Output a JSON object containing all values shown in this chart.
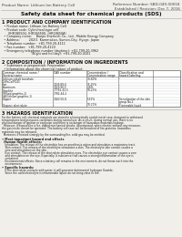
{
  "bg_color": "#f0efea",
  "header_left": "Product Name: Lithium Ion Battery Cell",
  "header_right_line1": "Reference Number: SBD-049-00018",
  "header_right_line2": "Established / Revision: Dec 7, 2016",
  "title": "Safety data sheet for chemical products (SDS)",
  "section1_title": "1 PRODUCT AND COMPANY IDENTIFICATION",
  "section1_lines": [
    "  • Product name: Lithium Ion Battery Cell",
    "  • Product code: Cylindrical-type cell",
    "      (IHR18650U, IHR18650U, IHR18650A)",
    "  • Company name:    Banpu Enertech Co., Ltd., Mobile Energy Company",
    "  • Address:         202/1  Kammakan, Sumon-City, Hyogo, Japan",
    "  • Telephone number:  +81-799-20-4111",
    "  • Fax number:  +81-799-20-4120",
    "  • Emergency telephone number (daytime): +81-799-20-3962",
    "                             (Night and holiday): +81-799-20-4101"
  ],
  "section2_title": "2 COMPOSITION / INFORMATION ON INGREDIENTS",
  "section2_pre": "  • Substance or preparation: Preparation",
  "section2_sub": "  • Information about the chemical nature of product:",
  "table_col_headers1": [
    "Common chemical name /",
    "CAS number",
    "Concentration /",
    "Classification and"
  ],
  "table_col_headers2": [
    "Several name",
    "",
    "Concentration range",
    "hazard labeling"
  ],
  "table_rows": [
    [
      "Lithium cobalt tantalate",
      "-",
      "30-60%",
      "-"
    ],
    [
      "(LiMnCo(PO4))",
      "",
      "",
      ""
    ],
    [
      "Iron",
      "7439-89-6",
      "15-25%",
      "-"
    ],
    [
      "Aluminum",
      "7429-90-5",
      "2-6%",
      "-"
    ],
    [
      "Graphite",
      "77782-42-5",
      "10-25%",
      "-"
    ],
    [
      "(Mixed graphite-1)",
      "7782-44-2",
      "",
      ""
    ],
    [
      "(All lithium graphite-1)",
      "",
      "",
      ""
    ],
    [
      "Copper",
      "7440-50-8",
      "5-15%",
      "Sensitization of the skin"
    ],
    [
      "",
      "",
      "",
      "group No.2"
    ],
    [
      "Organic electrolyte",
      "-",
      "10-20%",
      "Flammable liquid"
    ]
  ],
  "section3_title": "3 HAZARDS IDENTIFICATION",
  "section3_lines": [
    "For the battery cell, chemical materials are stored in a hermetically sealed metal case, designed to withstand",
    "temperatures and pressures-conditions during normal use. As a result, during normal use, there is no",
    "physical danger of ignition or explosion and there is no danger of hazardous materials leakage.",
    "  However, if exposed to a fire, added mechanical shocks, decomposed, when electric without any measure,",
    "the gas inside cannot be operated. The battery cell case will be breached of fire-proteins, hazardous",
    "materials may be released.",
    "  Moreover, if heated strongly by the surrounding fire, solid gas may be emitted."
  ],
  "section3_bullet1": "• Most important hazard and effects",
  "section3_human": "  Human health effects:",
  "section3_human_lines": [
    "    Inhalation: The release of the electrolyte has an anesthesia action and stimulates a respiratory tract.",
    "    Skin contact: The release of the electrolyte stimulates a skin. The electrolyte skin contact causes a",
    "    sore and stimulation on the skin.",
    "    Eye contact: The release of the electrolyte stimulates eyes. The electrolyte eye contact causes a sore",
    "    and stimulation on the eye. Especially, a substance that causes a strong inflammation of the eye is",
    "    contained.",
    "    Environmental effects: Since a battery cell remains in the environment, do not throw out it into the",
    "    environment."
  ],
  "section3_specific": "• Specific hazards:",
  "section3_specific_lines": [
    "    If the electrolyte contacts with water, it will generate detrimental hydrogen fluoride.",
    "    Since the used electrolyte is inflammable liquid, do not bring close to fire."
  ]
}
